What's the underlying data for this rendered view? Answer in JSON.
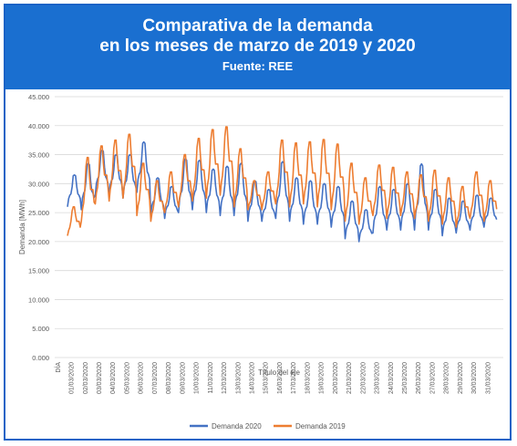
{
  "header": {
    "title_line1": "Comparativa de la demanda",
    "title_line2": "en los meses de marzo de 2019 y 2020",
    "source": "Fuente: REE"
  },
  "chart_data": {
    "type": "line",
    "ylabel": "Demanda [MWh]",
    "xlabel": "Título del eje",
    "ylim": [
      0,
      45000
    ],
    "yticks": [
      "0.000",
      "5.000",
      "10.000",
      "15.000",
      "20.000",
      "25.000",
      "30.000",
      "35.000",
      "40.000",
      "45.000"
    ],
    "x_first_label": "DÍA",
    "x_labels": [
      "01/03/2020",
      "02/03/2020",
      "03/03/2020",
      "04/03/2020",
      "05/03/2020",
      "06/03/2020",
      "07/03/2020",
      "08/03/2020",
      "09/03/2020",
      "10/03/2020",
      "11/03/2020",
      "12/03/2020",
      "13/03/2020",
      "14/03/2020",
      "15/03/2020",
      "16/03/2020",
      "17/03/2020",
      "18/03/2020",
      "19/03/2020",
      "20/03/2020",
      "21/03/2020",
      "22/03/2020",
      "23/03/2020",
      "24/03/2020",
      "25/03/2020",
      "26/03/2020",
      "27/03/2020",
      "28/03/2020",
      "29/03/2020",
      "30/03/2020",
      "31/03/2020"
    ],
    "grid": true,
    "legend_position": "bottom",
    "series": [
      {
        "name": "Demanda 2020",
        "color": "#4472c4",
        "daily": [
          {
            "min": 26000,
            "max": 31500
          },
          {
            "min": 25500,
            "max": 33500
          },
          {
            "min": 28000,
            "max": 35800
          },
          {
            "min": 28000,
            "max": 35000
          },
          {
            "min": 27500,
            "max": 35000
          },
          {
            "min": 28500,
            "max": 37200
          },
          {
            "min": 24500,
            "max": 31000
          },
          {
            "min": 24000,
            "max": 29500
          },
          {
            "min": 25000,
            "max": 34300
          },
          {
            "min": 25500,
            "max": 34000
          },
          {
            "min": 25000,
            "max": 32500
          },
          {
            "min": 24500,
            "max": 33000
          },
          {
            "min": 24500,
            "max": 33500
          },
          {
            "min": 23500,
            "max": 30500
          },
          {
            "min": 23500,
            "max": 29000
          },
          {
            "min": 24000,
            "max": 33800
          },
          {
            "min": 23500,
            "max": 31000
          },
          {
            "min": 23000,
            "max": 30500
          },
          {
            "min": 23000,
            "max": 30000
          },
          {
            "min": 22500,
            "max": 29500
          },
          {
            "min": 20500,
            "max": 27000
          },
          {
            "min": 20000,
            "max": 25500
          },
          {
            "min": 21500,
            "max": 29500
          },
          {
            "min": 22000,
            "max": 29000
          },
          {
            "min": 22000,
            "max": 30000
          },
          {
            "min": 22000,
            "max": 33400
          },
          {
            "min": 22000,
            "max": 29000
          },
          {
            "min": 21000,
            "max": 27500
          },
          {
            "min": 21500,
            "max": 27000
          },
          {
            "min": 22000,
            "max": 28000
          },
          {
            "min": 22500,
            "max": 27500
          }
        ]
      },
      {
        "name": "Demanda 2019",
        "color": "#ed7d31",
        "daily": [
          {
            "min": 21000,
            "max": 26000
          },
          {
            "min": 23500,
            "max": 34500
          },
          {
            "min": 26500,
            "max": 36500
          },
          {
            "min": 27000,
            "max": 37500
          },
          {
            "min": 27500,
            "max": 38500
          },
          {
            "min": 24500,
            "max": 33500
          },
          {
            "min": 23500,
            "max": 30500
          },
          {
            "min": 25000,
            "max": 32000
          },
          {
            "min": 26000,
            "max": 35000
          },
          {
            "min": 27000,
            "max": 37800
          },
          {
            "min": 27500,
            "max": 39300
          },
          {
            "min": 28000,
            "max": 39800
          },
          {
            "min": 26000,
            "max": 36000
          },
          {
            "min": 25500,
            "max": 30500
          },
          {
            "min": 25500,
            "max": 32000
          },
          {
            "min": 26500,
            "max": 37500
          },
          {
            "min": 26000,
            "max": 37000
          },
          {
            "min": 26500,
            "max": 37200
          },
          {
            "min": 26000,
            "max": 37600
          },
          {
            "min": 25500,
            "max": 36800
          },
          {
            "min": 23500,
            "max": 33500
          },
          {
            "min": 23000,
            "max": 31000
          },
          {
            "min": 24500,
            "max": 33200
          },
          {
            "min": 24000,
            "max": 32800
          },
          {
            "min": 24500,
            "max": 32000
          },
          {
            "min": 24000,
            "max": 31500
          },
          {
            "min": 23500,
            "max": 32300
          },
          {
            "min": 23000,
            "max": 31000
          },
          {
            "min": 22500,
            "max": 29500
          },
          {
            "min": 24000,
            "max": 32000
          },
          {
            "min": 23500,
            "max": 30500
          }
        ]
      }
    ]
  }
}
